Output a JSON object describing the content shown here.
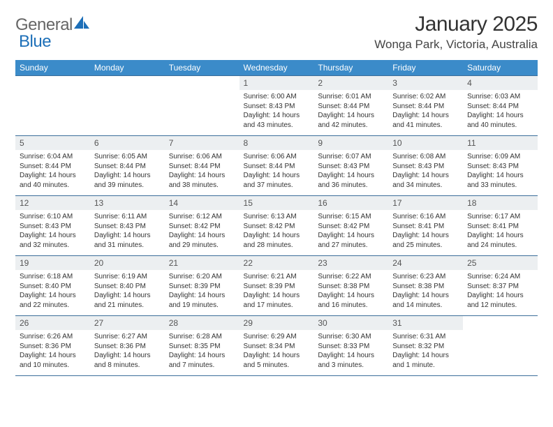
{
  "logo": {
    "part1": "General",
    "part2": "Blue"
  },
  "title": "January 2025",
  "location": "Wonga Park, Victoria, Australia",
  "colors": {
    "header_bg": "#3b8bc9",
    "header_text": "#ffffff",
    "rule": "#3b6e9a",
    "daynum_bg": "#eceff1",
    "logo_gray": "#666666",
    "logo_blue": "#1d6fb8"
  },
  "day_headers": [
    "Sunday",
    "Monday",
    "Tuesday",
    "Wednesday",
    "Thursday",
    "Friday",
    "Saturday"
  ],
  "weeks": [
    [
      {
        "n": "",
        "lines": []
      },
      {
        "n": "",
        "lines": []
      },
      {
        "n": "",
        "lines": []
      },
      {
        "n": "1",
        "lines": [
          "Sunrise: 6:00 AM",
          "Sunset: 8:43 PM",
          "Daylight: 14 hours",
          "and 43 minutes."
        ]
      },
      {
        "n": "2",
        "lines": [
          "Sunrise: 6:01 AM",
          "Sunset: 8:44 PM",
          "Daylight: 14 hours",
          "and 42 minutes."
        ]
      },
      {
        "n": "3",
        "lines": [
          "Sunrise: 6:02 AM",
          "Sunset: 8:44 PM",
          "Daylight: 14 hours",
          "and 41 minutes."
        ]
      },
      {
        "n": "4",
        "lines": [
          "Sunrise: 6:03 AM",
          "Sunset: 8:44 PM",
          "Daylight: 14 hours",
          "and 40 minutes."
        ]
      }
    ],
    [
      {
        "n": "5",
        "lines": [
          "Sunrise: 6:04 AM",
          "Sunset: 8:44 PM",
          "Daylight: 14 hours",
          "and 40 minutes."
        ]
      },
      {
        "n": "6",
        "lines": [
          "Sunrise: 6:05 AM",
          "Sunset: 8:44 PM",
          "Daylight: 14 hours",
          "and 39 minutes."
        ]
      },
      {
        "n": "7",
        "lines": [
          "Sunrise: 6:06 AM",
          "Sunset: 8:44 PM",
          "Daylight: 14 hours",
          "and 38 minutes."
        ]
      },
      {
        "n": "8",
        "lines": [
          "Sunrise: 6:06 AM",
          "Sunset: 8:44 PM",
          "Daylight: 14 hours",
          "and 37 minutes."
        ]
      },
      {
        "n": "9",
        "lines": [
          "Sunrise: 6:07 AM",
          "Sunset: 8:43 PM",
          "Daylight: 14 hours",
          "and 36 minutes."
        ]
      },
      {
        "n": "10",
        "lines": [
          "Sunrise: 6:08 AM",
          "Sunset: 8:43 PM",
          "Daylight: 14 hours",
          "and 34 minutes."
        ]
      },
      {
        "n": "11",
        "lines": [
          "Sunrise: 6:09 AM",
          "Sunset: 8:43 PM",
          "Daylight: 14 hours",
          "and 33 minutes."
        ]
      }
    ],
    [
      {
        "n": "12",
        "lines": [
          "Sunrise: 6:10 AM",
          "Sunset: 8:43 PM",
          "Daylight: 14 hours",
          "and 32 minutes."
        ]
      },
      {
        "n": "13",
        "lines": [
          "Sunrise: 6:11 AM",
          "Sunset: 8:43 PM",
          "Daylight: 14 hours",
          "and 31 minutes."
        ]
      },
      {
        "n": "14",
        "lines": [
          "Sunrise: 6:12 AM",
          "Sunset: 8:42 PM",
          "Daylight: 14 hours",
          "and 29 minutes."
        ]
      },
      {
        "n": "15",
        "lines": [
          "Sunrise: 6:13 AM",
          "Sunset: 8:42 PM",
          "Daylight: 14 hours",
          "and 28 minutes."
        ]
      },
      {
        "n": "16",
        "lines": [
          "Sunrise: 6:15 AM",
          "Sunset: 8:42 PM",
          "Daylight: 14 hours",
          "and 27 minutes."
        ]
      },
      {
        "n": "17",
        "lines": [
          "Sunrise: 6:16 AM",
          "Sunset: 8:41 PM",
          "Daylight: 14 hours",
          "and 25 minutes."
        ]
      },
      {
        "n": "18",
        "lines": [
          "Sunrise: 6:17 AM",
          "Sunset: 8:41 PM",
          "Daylight: 14 hours",
          "and 24 minutes."
        ]
      }
    ],
    [
      {
        "n": "19",
        "lines": [
          "Sunrise: 6:18 AM",
          "Sunset: 8:40 PM",
          "Daylight: 14 hours",
          "and 22 minutes."
        ]
      },
      {
        "n": "20",
        "lines": [
          "Sunrise: 6:19 AM",
          "Sunset: 8:40 PM",
          "Daylight: 14 hours",
          "and 21 minutes."
        ]
      },
      {
        "n": "21",
        "lines": [
          "Sunrise: 6:20 AM",
          "Sunset: 8:39 PM",
          "Daylight: 14 hours",
          "and 19 minutes."
        ]
      },
      {
        "n": "22",
        "lines": [
          "Sunrise: 6:21 AM",
          "Sunset: 8:39 PM",
          "Daylight: 14 hours",
          "and 17 minutes."
        ]
      },
      {
        "n": "23",
        "lines": [
          "Sunrise: 6:22 AM",
          "Sunset: 8:38 PM",
          "Daylight: 14 hours",
          "and 16 minutes."
        ]
      },
      {
        "n": "24",
        "lines": [
          "Sunrise: 6:23 AM",
          "Sunset: 8:38 PM",
          "Daylight: 14 hours",
          "and 14 minutes."
        ]
      },
      {
        "n": "25",
        "lines": [
          "Sunrise: 6:24 AM",
          "Sunset: 8:37 PM",
          "Daylight: 14 hours",
          "and 12 minutes."
        ]
      }
    ],
    [
      {
        "n": "26",
        "lines": [
          "Sunrise: 6:26 AM",
          "Sunset: 8:36 PM",
          "Daylight: 14 hours",
          "and 10 minutes."
        ]
      },
      {
        "n": "27",
        "lines": [
          "Sunrise: 6:27 AM",
          "Sunset: 8:36 PM",
          "Daylight: 14 hours",
          "and 8 minutes."
        ]
      },
      {
        "n": "28",
        "lines": [
          "Sunrise: 6:28 AM",
          "Sunset: 8:35 PM",
          "Daylight: 14 hours",
          "and 7 minutes."
        ]
      },
      {
        "n": "29",
        "lines": [
          "Sunrise: 6:29 AM",
          "Sunset: 8:34 PM",
          "Daylight: 14 hours",
          "and 5 minutes."
        ]
      },
      {
        "n": "30",
        "lines": [
          "Sunrise: 6:30 AM",
          "Sunset: 8:33 PM",
          "Daylight: 14 hours",
          "and 3 minutes."
        ]
      },
      {
        "n": "31",
        "lines": [
          "Sunrise: 6:31 AM",
          "Sunset: 8:32 PM",
          "Daylight: 14 hours",
          "and 1 minute."
        ]
      },
      {
        "n": "",
        "lines": []
      }
    ]
  ]
}
